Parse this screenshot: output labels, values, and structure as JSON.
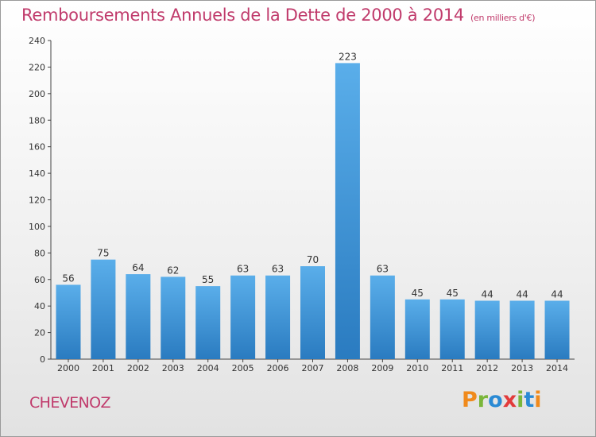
{
  "header": {
    "title": "Remboursements Annuels de la Dette de 2000 à 2014",
    "unit": "(en milliers d'€)"
  },
  "footer": {
    "commune": "CHEVENOZ",
    "logo": "Proxiti"
  },
  "colors": {
    "title": "#c03a6b",
    "bar_top": "#5aaeea",
    "bar_bottom": "#2a7bc0",
    "logo_letters": [
      "#f08a1c",
      "#7ab63a",
      "#2a8ad4",
      "#e23b3b",
      "#7ab63a",
      "#2a8ad4",
      "#f08a1c"
    ]
  },
  "chart_data": {
    "type": "bar",
    "title": "Remboursements Annuels de la Dette de 2000 à 2014",
    "subtitle": "(en milliers d'€)",
    "categories": [
      "2000",
      "2001",
      "2002",
      "2003",
      "2004",
      "2005",
      "2006",
      "2007",
      "2008",
      "2009",
      "2010",
      "2011",
      "2012",
      "2013",
      "2014"
    ],
    "values": [
      56,
      75,
      64,
      62,
      55,
      63,
      63,
      70,
      223,
      63,
      45,
      45,
      44,
      44,
      44
    ],
    "ylim": [
      0,
      240
    ],
    "yticks": [
      0,
      20,
      40,
      60,
      80,
      100,
      120,
      140,
      160,
      180,
      200,
      220,
      240
    ],
    "grid": false
  }
}
